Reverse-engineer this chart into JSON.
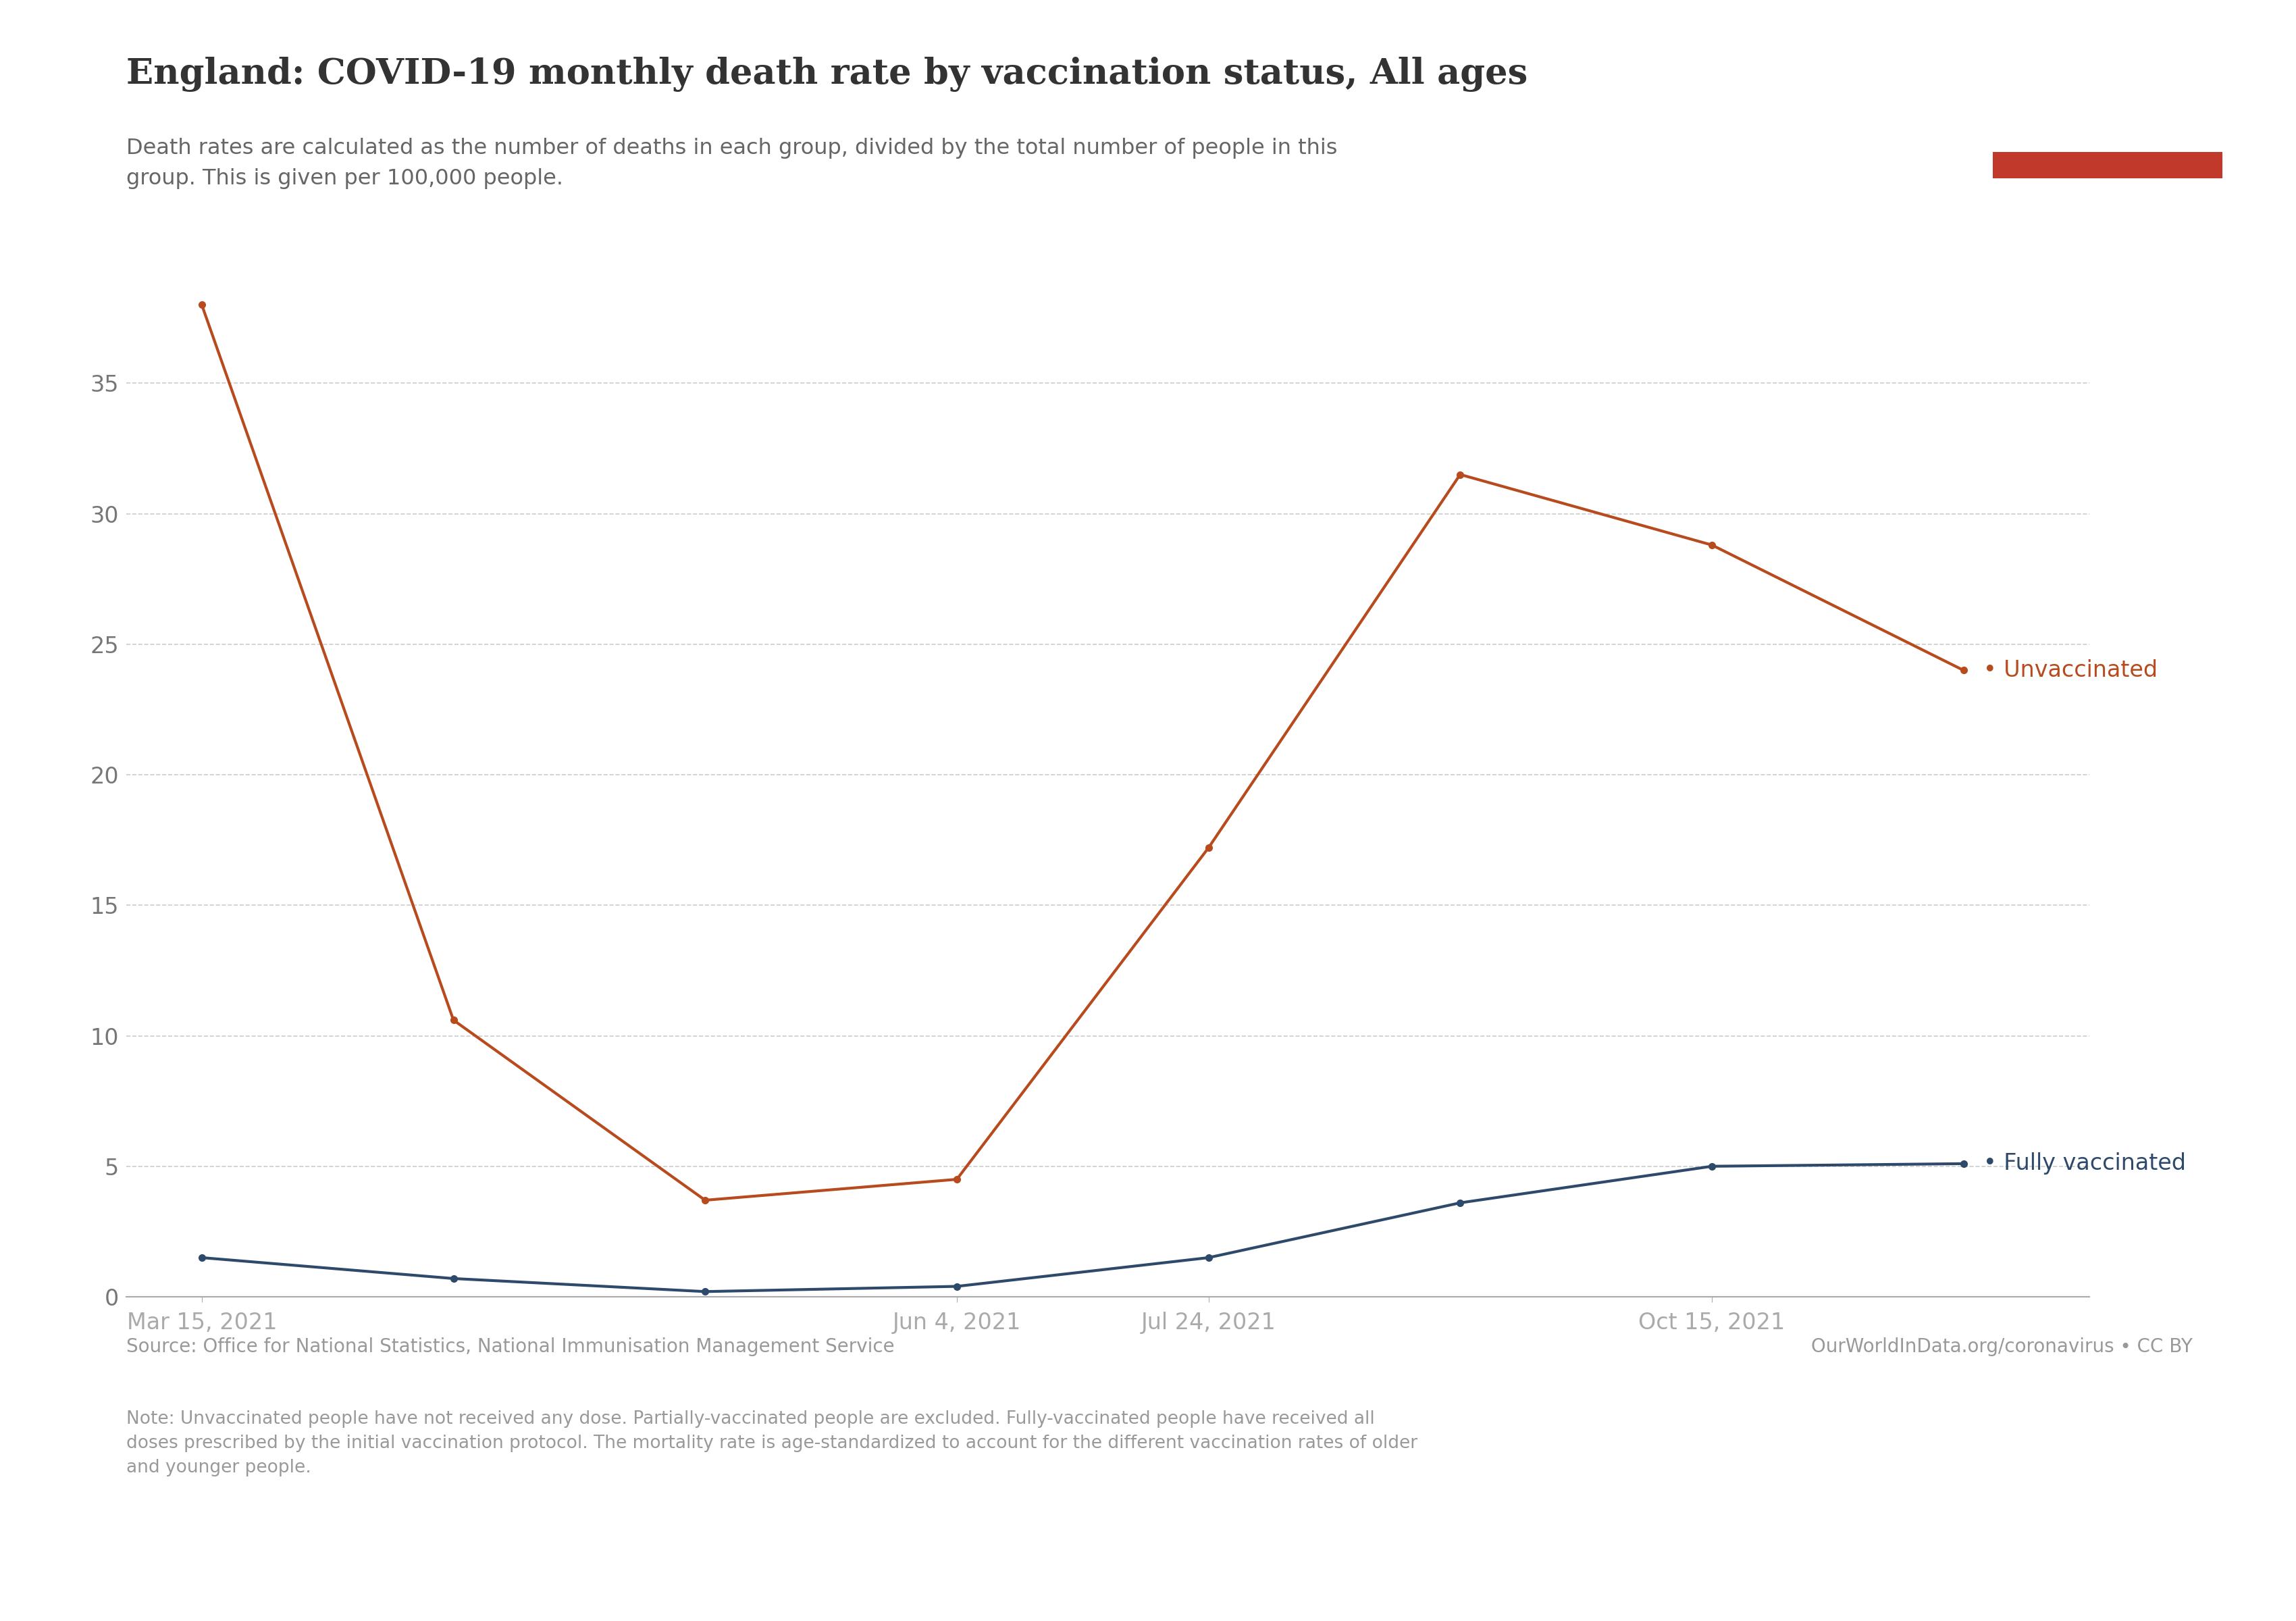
{
  "title": "England: COVID-19 monthly death rate by vaccination status, All ages",
  "subtitle": "Death rates are calculated as the number of deaths in each group, divided by the total number of people in this\ngroup. This is given per 100,000 people.",
  "x_tick_labels": [
    "Mar 15, 2021",
    "Jun 4, 2021",
    "Jul 24, 2021",
    "Oct 15, 2021"
  ],
  "x_tick_positions": [
    0,
    3,
    4,
    6
  ],
  "unvaccinated": [
    38.0,
    10.6,
    3.7,
    4.5,
    17.2,
    31.5,
    28.8,
    24.0
  ],
  "fully_vaccinated": [
    1.5,
    0.7,
    0.2,
    0.4,
    1.5,
    3.6,
    5.0,
    5.1
  ],
  "color_unvaccinated": "#b84b1e",
  "color_vaccinated": "#2e4a6b",
  "ylim": [
    0,
    38.5
  ],
  "yticks": [
    0,
    5,
    10,
    15,
    20,
    25,
    30,
    35
  ],
  "source_text": "Source: Office for National Statistics, National Immunisation Management Service",
  "source_right": "OurWorldInData.org/coronavirus • CC BY",
  "note_text": "Note: Unvaccinated people have not received any dose. Partially-vaccinated people are excluded. Fully-vaccinated people have received all\ndoses prescribed by the initial vaccination protocol. The mortality rate is age-standardized to account for the different vaccination rates of older\nand younger people.",
  "owid_box_bg": "#1a3a5c",
  "owid_box_red": "#c0392b",
  "background_color": "#ffffff",
  "label_unvaccinated": "Unvaccinated",
  "label_vaccinated": "Fully vaccinated"
}
